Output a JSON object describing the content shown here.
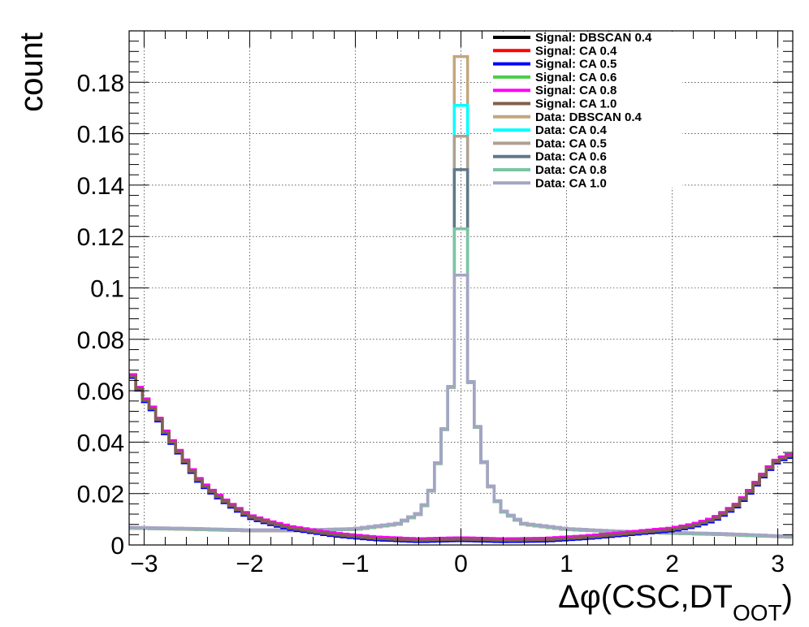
{
  "chart_data": {
    "type": "line",
    "title": "",
    "xlabel": "Δφ(CSC,DT",
    "xlabel_sub": "OOT",
    "xlabel_close": ")",
    "ylabel": "count",
    "xlim": [
      -3.1416,
      3.1416
    ],
    "ylim": [
      0,
      0.2
    ],
    "x_ticks": [
      -3,
      -2,
      -1,
      0,
      1,
      2,
      3
    ],
    "x_tick_labels": [
      "−3",
      "−2",
      "−1",
      "0",
      "1",
      "2",
      "3"
    ],
    "y_ticks": [
      0,
      0.02,
      0.04,
      0.06,
      0.08,
      0.1,
      0.12,
      0.14,
      0.16,
      0.18
    ],
    "y_tick_labels": [
      "0",
      "0.02",
      "0.04",
      "0.06",
      "0.08",
      "0.1",
      "0.12",
      "0.14",
      "0.16",
      "0.18"
    ],
    "grid": true,
    "legend_position": "top-right",
    "bins": 100,
    "signal_curve": {
      "x": [
        -3.14,
        -3.0,
        -2.9,
        -2.8,
        -2.7,
        -2.6,
        -2.5,
        -2.4,
        -2.2,
        -2.0,
        -1.8,
        -1.6,
        -1.2,
        -0.8,
        -0.4,
        0.0,
        0.4,
        0.8,
        1.2,
        1.6,
        2.0,
        2.2,
        2.4,
        2.6,
        2.7,
        2.8,
        2.9,
        3.0,
        3.14
      ],
      "y": [
        0.068,
        0.057,
        0.052,
        0.044,
        0.038,
        0.032,
        0.026,
        0.022,
        0.016,
        0.011,
        0.0085,
        0.0065,
        0.004,
        0.0025,
        0.0018,
        0.0022,
        0.0018,
        0.002,
        0.003,
        0.0045,
        0.006,
        0.0075,
        0.01,
        0.015,
        0.019,
        0.024,
        0.029,
        0.033,
        0.035
      ]
    },
    "data_curve": {
      "x": [
        -3.14,
        -2.5,
        -2.0,
        -1.5,
        -1.0,
        -0.6,
        -0.4,
        -0.3,
        -0.2,
        -0.1,
        0.0,
        0.1,
        0.2,
        0.3,
        0.4,
        0.6,
        1.0,
        1.5,
        2.0,
        2.5,
        3.14
      ],
      "y": [
        0.0065,
        0.006,
        0.0055,
        0.0055,
        0.006,
        0.008,
        0.012,
        0.018,
        0.035,
        0.058,
        0.115,
        0.06,
        0.035,
        0.02,
        0.013,
        0.008,
        0.006,
        0.005,
        0.0045,
        0.004,
        0.003
      ]
    },
    "series": [
      {
        "name": "Signal: DBSCAN 0.4",
        "color": "#000000",
        "group": "signal",
        "offset": 0.0,
        "peak": 0
      },
      {
        "name": "Signal: CA 0.4",
        "color": "#ff0000",
        "group": "signal",
        "offset": 0.0003,
        "peak": 0
      },
      {
        "name": "Signal: CA 0.5",
        "color": "#0000ff",
        "group": "signal",
        "offset": -0.0005,
        "peak": 0
      },
      {
        "name": "Signal: CA 0.6",
        "color": "#4ccc4c",
        "group": "signal",
        "offset": 0.0002,
        "peak": 0
      },
      {
        "name": "Signal: CA 0.8",
        "color": "#ff00ff",
        "group": "signal",
        "offset": 0.0006,
        "peak": 0
      },
      {
        "name": "Signal: CA 1.0",
        "color": "#80604c",
        "group": "signal",
        "offset": 0.0,
        "peak": 0
      },
      {
        "name": "Data: DBSCAN 0.4",
        "color": "#c4a67c",
        "group": "data",
        "offset": 0.0,
        "peak": 0.19
      },
      {
        "name": "Data: CA 0.4",
        "color": "#00ffff",
        "group": "data",
        "offset": 0.0003,
        "peak": 0.171
      },
      {
        "name": "Data: CA 0.5",
        "color": "#b0a090",
        "group": "data",
        "offset": 0.0,
        "peak": 0.159
      },
      {
        "name": "Data: CA 0.6",
        "color": "#607888",
        "group": "data",
        "offset": 0.0002,
        "peak": 0.146
      },
      {
        "name": "Data: CA 0.8",
        "color": "#7cc4a4",
        "group": "data",
        "offset": 0.0001,
        "peak": 0.123
      },
      {
        "name": "Data: CA 1.0",
        "color": "#a4a4c4",
        "group": "data",
        "offset": 0.0004,
        "peak": 0.105
      }
    ]
  }
}
